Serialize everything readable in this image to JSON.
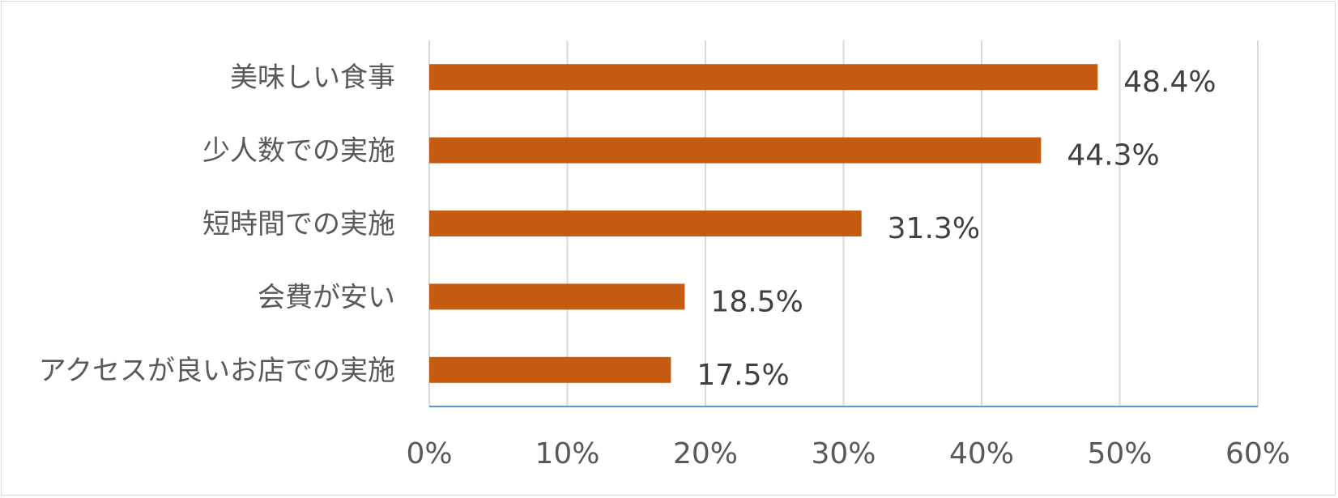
{
  "chart_data": {
    "type": "bar",
    "orientation": "horizontal",
    "categories": [
      "美味しい食事",
      "少人数での実施",
      "短時間での実施",
      "会費が安い",
      "アクセスが良いお店での実施"
    ],
    "values": [
      48.4,
      44.3,
      31.3,
      18.5,
      17.5
    ],
    "data_labels": [
      "48.4%",
      "44.3%",
      "31.3%",
      "18.5%",
      "17.5%"
    ],
    "x_ticks": [
      "0%",
      "10%",
      "20%",
      "30%",
      "40%",
      "50%",
      "60%"
    ],
    "xlim": [
      0,
      60
    ],
    "grid": true,
    "legend": "none",
    "title": "",
    "xlabel": "",
    "ylabel": "",
    "colors": {
      "bar": "#c55a11",
      "grid": "#d9d9d9",
      "axis": "#5b9bd5"
    }
  }
}
